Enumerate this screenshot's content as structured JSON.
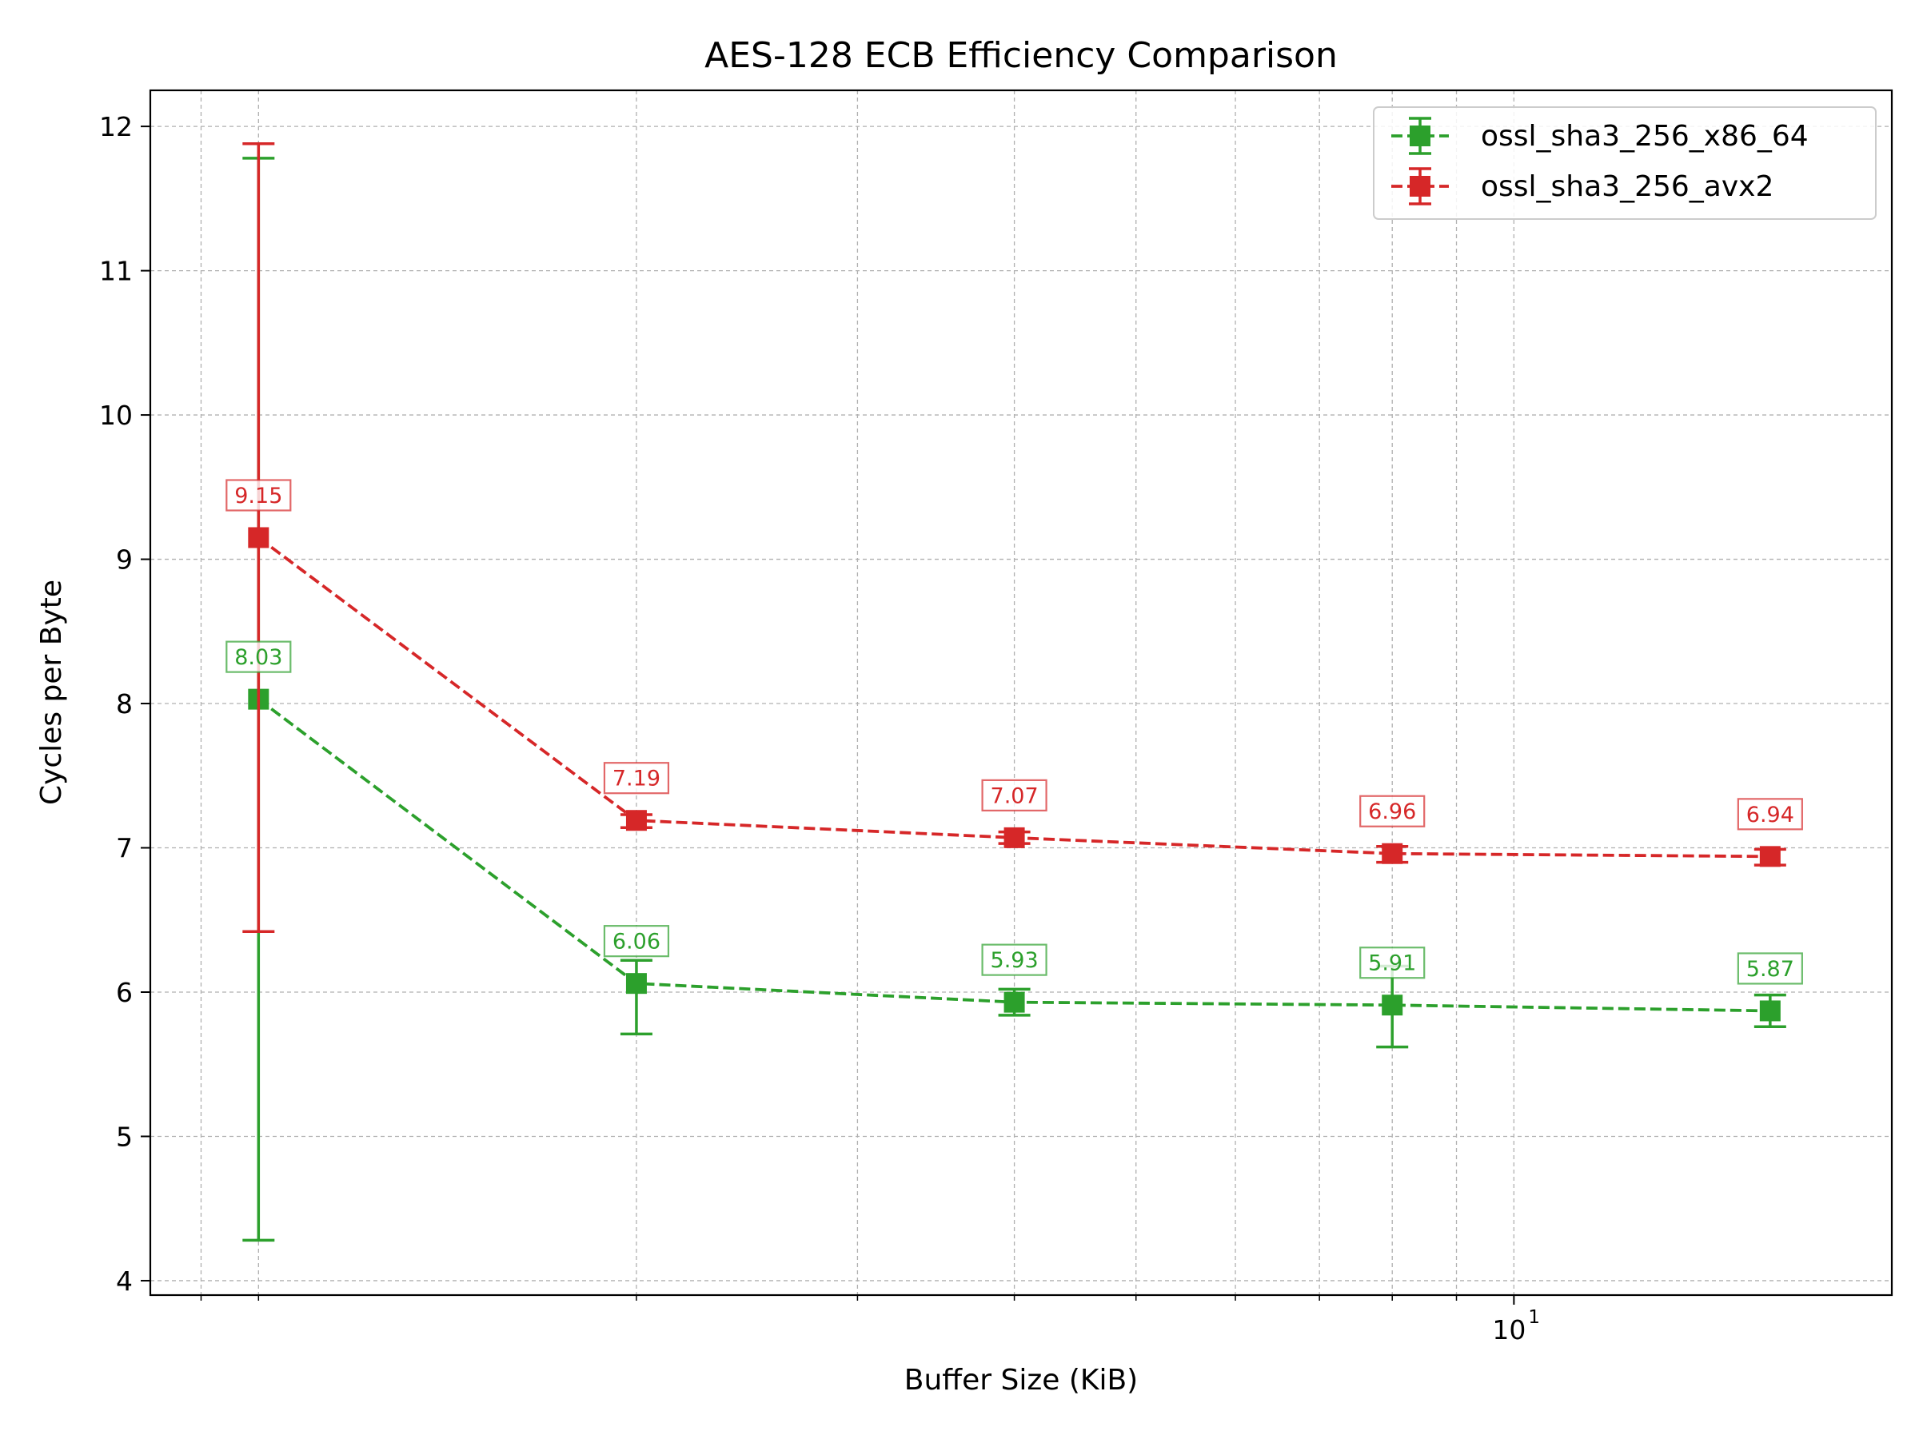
{
  "chart_data": {
    "type": "line",
    "title": "AES-128 ECB Efficiency Comparison",
    "xlabel": "Buffer Size (KiB)",
    "ylabel": "Cycles per Byte",
    "x_scale": "log",
    "x": [
      1,
      2,
      4,
      8,
      16
    ],
    "xlim": [
      0.82,
      20.0
    ],
    "ylim": [
      3.9,
      12.25
    ],
    "x_ticks": [
      {
        "value": 10,
        "base": "10",
        "exp": "1"
      }
    ],
    "y_ticks": [
      4,
      5,
      6,
      7,
      8,
      9,
      10,
      11,
      12
    ],
    "grid": true,
    "legend_position": "top-right",
    "series": [
      {
        "name": "ossl_sha3_256_x86_64",
        "color": "#2ca02c",
        "marker": "square",
        "line_style": "dashed",
        "values": [
          8.03,
          6.06,
          5.93,
          5.91,
          5.87
        ],
        "error_low": [
          4.28,
          5.71,
          5.84,
          5.62,
          5.76
        ],
        "error_high": [
          11.78,
          6.22,
          6.02,
          6.18,
          5.98
        ],
        "labels": [
          "8.03",
          "6.06",
          "5.93",
          "5.91",
          "5.87"
        ]
      },
      {
        "name": "ossl_sha3_256_avx2",
        "color": "#d62728",
        "marker": "square",
        "line_style": "dashed",
        "values": [
          9.15,
          7.19,
          7.07,
          6.96,
          6.94
        ],
        "error_low": [
          6.42,
          7.14,
          7.03,
          6.9,
          6.88
        ],
        "error_high": [
          11.88,
          7.23,
          7.11,
          7.01,
          6.99
        ],
        "labels": [
          "9.15",
          "7.19",
          "7.07",
          "6.96",
          "6.94"
        ]
      }
    ]
  }
}
